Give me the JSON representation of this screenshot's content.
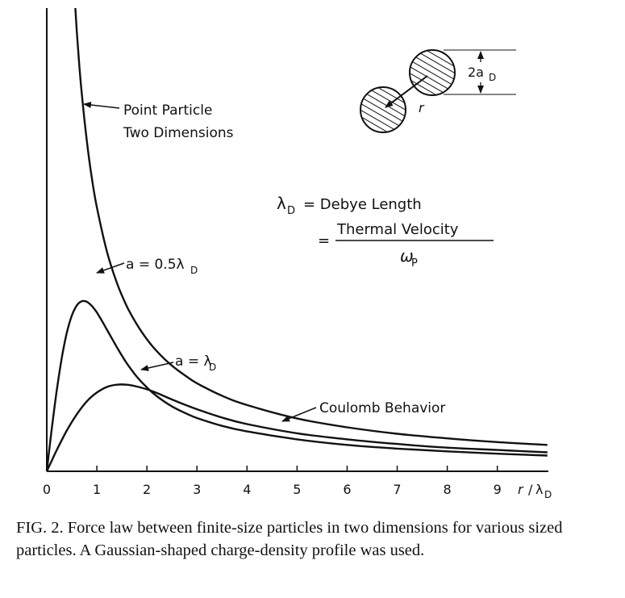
{
  "chart_data": {
    "type": "line",
    "xlabel": "r / λ_D",
    "x_ticks": [
      "0",
      "1",
      "2",
      "3",
      "4",
      "5",
      "6",
      "7",
      "8",
      "9"
    ],
    "xlim": [
      0,
      10
    ],
    "ylim": [
      0,
      1
    ],
    "series": [
      {
        "name": "Point Particle Two Dimensions",
        "x": [
          0.57,
          0.6,
          0.65,
          0.7,
          0.8,
          0.9,
          1.0,
          1.2,
          1.4,
          1.6,
          1.8,
          2.0,
          2.2,
          2.5,
          2.8,
          3.0,
          3.5,
          4.0,
          5.0,
          6.0,
          7.0,
          8.0,
          9.0,
          10.0
        ],
        "y": [
          1.0,
          0.95,
          0.877,
          0.814,
          0.713,
          0.633,
          0.57,
          0.475,
          0.407,
          0.356,
          0.317,
          0.285,
          0.259,
          0.228,
          0.204,
          0.19,
          0.163,
          0.143,
          0.114,
          0.095,
          0.081,
          0.071,
          0.063,
          0.057
        ]
      },
      {
        "name": "a = 0.5λ_D",
        "x": [
          0,
          0.1,
          0.2,
          0.3,
          0.4,
          0.5,
          0.6,
          0.7,
          0.8,
          0.9,
          1.0,
          1.1,
          1.2,
          1.3,
          1.4,
          1.5,
          1.6,
          1.8,
          2.0,
          2.2,
          2.5,
          2.8,
          3.0,
          3.5,
          4.0,
          5.0,
          6.0,
          7.0,
          8.0,
          9.0,
          10.0
        ],
        "y": [
          0,
          0.092,
          0.175,
          0.245,
          0.299,
          0.336,
          0.358,
          0.367,
          0.366,
          0.357,
          0.343,
          0.325,
          0.306,
          0.287,
          0.268,
          0.25,
          0.233,
          0.204,
          0.181,
          0.162,
          0.14,
          0.124,
          0.115,
          0.098,
          0.086,
          0.069,
          0.057,
          0.049,
          0.043,
          0.038,
          0.034
        ]
      },
      {
        "name": "a = λ_D",
        "x": [
          0,
          0.1,
          0.2,
          0.4,
          0.6,
          0.8,
          1.0,
          1.2,
          1.4,
          1.6,
          1.8,
          2.0,
          2.2,
          2.5,
          2.8,
          3.0,
          3.5,
          4.0,
          5.0,
          6.0,
          7.0,
          8.0,
          9.0,
          10.0
        ],
        "y": [
          0,
          0.023,
          0.046,
          0.088,
          0.123,
          0.151,
          0.17,
          0.182,
          0.187,
          0.187,
          0.183,
          0.177,
          0.169,
          0.155,
          0.142,
          0.134,
          0.116,
          0.102,
          0.082,
          0.069,
          0.059,
          0.051,
          0.046,
          0.041
        ]
      }
    ],
    "annotations": {
      "point_particle_line1": "Point Particle",
      "point_particle_line2": "Two Dimensions",
      "a_half_prefix": "a = 0.5λ",
      "a_half_sub": "D",
      "a_one_prefix": "a = λ",
      "a_one_sub": "D",
      "coulomb": "Coulomb Behavior",
      "debye_lambda": "λ",
      "debye_sub": "D",
      "debye_text": "= Debye Length",
      "equals": "=",
      "thermal": "Thermal Velocity",
      "omega": "ω",
      "omega_sub": "P",
      "inset_r": "r",
      "inset_size": "2a",
      "inset_size_sub": "D",
      "xlabel_r": "r",
      "xlabel_slash": "/",
      "xlabel_lambda": "λ",
      "xlabel_sub": "D"
    }
  },
  "caption": "FIG. 2. Force law between finite-size particles in two dimensions for various sized particles. A Gaussian-shaped charge-density profile was used."
}
